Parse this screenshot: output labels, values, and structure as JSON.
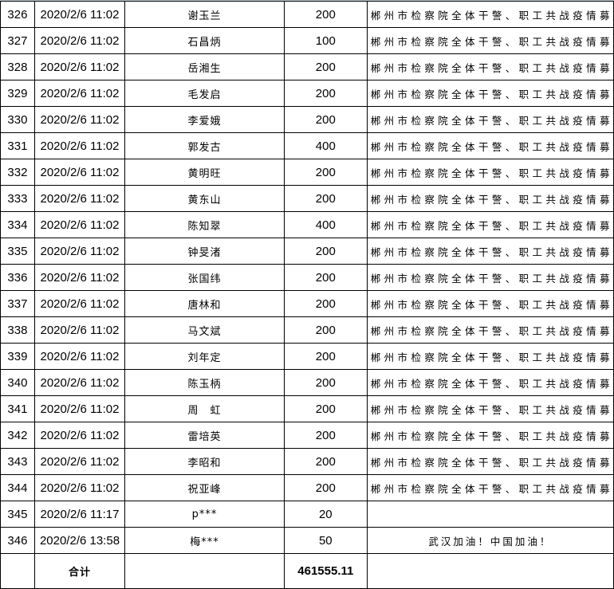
{
  "rows": [
    {
      "no": "326",
      "time": "2020/2/6 11:02",
      "name": "谢玉兰",
      "amount": "200",
      "note": "郴州市检察院全体干警、职工共战疫情募"
    },
    {
      "no": "327",
      "time": "2020/2/6 11:02",
      "name": "石昌炳",
      "amount": "100",
      "note": "郴州市检察院全体干警、职工共战疫情募"
    },
    {
      "no": "328",
      "time": "2020/2/6 11:02",
      "name": "岳湘生",
      "amount": "200",
      "note": "郴州市检察院全体干警、职工共战疫情募"
    },
    {
      "no": "329",
      "time": "2020/2/6 11:02",
      "name": "毛发启",
      "amount": "200",
      "note": "郴州市检察院全体干警、职工共战疫情募"
    },
    {
      "no": "330",
      "time": "2020/2/6 11:02",
      "name": "李爱娥",
      "amount": "200",
      "note": "郴州市检察院全体干警、职工共战疫情募"
    },
    {
      "no": "331",
      "time": "2020/2/6 11:02",
      "name": "郭发古",
      "amount": "400",
      "note": "郴州市检察院全体干警、职工共战疫情募"
    },
    {
      "no": "332",
      "time": "2020/2/6 11:02",
      "name": "黄明旺",
      "amount": "200",
      "note": "郴州市检察院全体干警、职工共战疫情募"
    },
    {
      "no": "333",
      "time": "2020/2/6 11:02",
      "name": "黄东山",
      "amount": "200",
      "note": "郴州市检察院全体干警、职工共战疫情募"
    },
    {
      "no": "334",
      "time": "2020/2/6 11:02",
      "name": "陈知翠",
      "amount": "400",
      "note": "郴州市检察院全体干警、职工共战疫情募"
    },
    {
      "no": "335",
      "time": "2020/2/6 11:02",
      "name": "钟旻渚",
      "amount": "200",
      "note": "郴州市检察院全体干警、职工共战疫情募"
    },
    {
      "no": "336",
      "time": "2020/2/6 11:02",
      "name": "张国纬",
      "amount": "200",
      "note": "郴州市检察院全体干警、职工共战疫情募"
    },
    {
      "no": "337",
      "time": "2020/2/6 11:02",
      "name": "唐林和",
      "amount": "200",
      "note": "郴州市检察院全体干警、职工共战疫情募"
    },
    {
      "no": "338",
      "time": "2020/2/6 11:02",
      "name": "马文斌",
      "amount": "200",
      "note": "郴州市检察院全体干警、职工共战疫情募"
    },
    {
      "no": "339",
      "time": "2020/2/6 11:02",
      "name": "刘年定",
      "amount": "200",
      "note": "郴州市检察院全体干警、职工共战疫情募"
    },
    {
      "no": "340",
      "time": "2020/2/6 11:02",
      "name": "陈玉柄",
      "amount": "200",
      "note": "郴州市检察院全体干警、职工共战疫情募"
    },
    {
      "no": "341",
      "time": "2020/2/6 11:02",
      "name": "周　虹",
      "amount": "200",
      "note": "郴州市检察院全体干警、职工共战疫情募"
    },
    {
      "no": "342",
      "time": "2020/2/6 11:02",
      "name": "雷培英",
      "amount": "200",
      "note": "郴州市检察院全体干警、职工共战疫情募"
    },
    {
      "no": "343",
      "time": "2020/2/6 11:02",
      "name": "李昭和",
      "amount": "200",
      "note": "郴州市检察院全体干警、职工共战疫情募"
    },
    {
      "no": "344",
      "time": "2020/2/6 11:02",
      "name": "祝亚峰",
      "amount": "200",
      "note": "郴州市检察院全体干警、职工共战疫情募"
    },
    {
      "no": "345",
      "time": "2020/2/6 11:17",
      "name": "p***",
      "amount": "20",
      "note": ""
    },
    {
      "no": "346",
      "time": "2020/2/6 13:58",
      "name": "梅***",
      "amount": "50",
      "note": "武汉加油！中国加油！"
    }
  ],
  "total": {
    "label": "合计",
    "amount": "461555.11"
  }
}
